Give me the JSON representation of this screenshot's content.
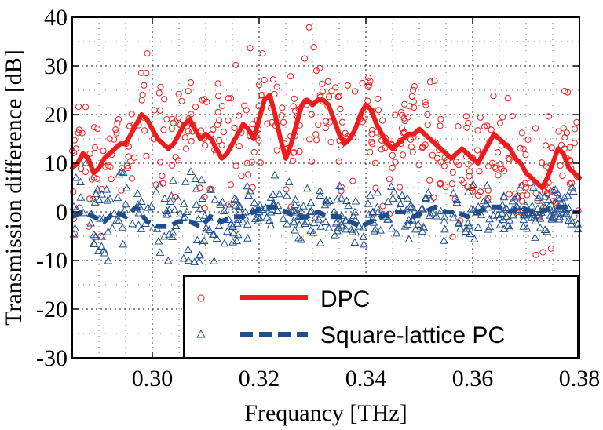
{
  "chart_data": {
    "type": "scatter",
    "xlabel": "Frequancy [THz]",
    "ylabel": "Transmission difference [dB]",
    "xlim": [
      0.285,
      0.38
    ],
    "ylim": [
      -30,
      40
    ],
    "xticks": [
      0.3,
      0.32,
      0.34,
      0.36,
      0.38
    ],
    "xtick_labels": [
      "0.30",
      "0.32",
      "0.34",
      "0.36",
      "0.38"
    ],
    "yticks": [
      -30,
      -20,
      -10,
      0,
      10,
      20,
      30,
      40
    ],
    "ytick_labels": [
      "-30",
      "-20",
      "-10",
      "0",
      "10",
      "20",
      "30",
      "40"
    ],
    "grid": true,
    "grid_style": "dotted",
    "legend_placement": "bottom-right",
    "series": [
      {
        "name": "DPC",
        "kind": "line",
        "color": "#ee1c1c",
        "style": "solid",
        "x": [
          0.285,
          0.286,
          0.287,
          0.288,
          0.289,
          0.29,
          0.291,
          0.292,
          0.293,
          0.294,
          0.295,
          0.296,
          0.297,
          0.298,
          0.299,
          0.3,
          0.301,
          0.302,
          0.303,
          0.304,
          0.305,
          0.306,
          0.307,
          0.308,
          0.309,
          0.31,
          0.311,
          0.312,
          0.313,
          0.314,
          0.315,
          0.316,
          0.317,
          0.318,
          0.319,
          0.32,
          0.321,
          0.322,
          0.323,
          0.324,
          0.325,
          0.326,
          0.327,
          0.328,
          0.329,
          0.33,
          0.331,
          0.332,
          0.333,
          0.334,
          0.335,
          0.336,
          0.337,
          0.338,
          0.339,
          0.34,
          0.341,
          0.342,
          0.343,
          0.344,
          0.345,
          0.346,
          0.347,
          0.348,
          0.349,
          0.35,
          0.351,
          0.352,
          0.353,
          0.354,
          0.355,
          0.356,
          0.357,
          0.358,
          0.359,
          0.36,
          0.361,
          0.362,
          0.363,
          0.364,
          0.365,
          0.366,
          0.367,
          0.368,
          0.369,
          0.37,
          0.371,
          0.372,
          0.373,
          0.374,
          0.375,
          0.376,
          0.377,
          0.378,
          0.379,
          0.38
        ],
        "y": [
          9,
          10,
          12,
          11,
          8,
          9,
          11,
          12,
          13,
          14,
          14,
          16,
          18,
          20,
          19,
          17,
          15,
          14,
          13,
          14,
          16,
          18,
          19,
          17,
          15,
          16,
          15,
          13,
          11,
          12,
          14,
          16,
          18,
          17,
          15,
          19,
          23,
          24,
          20,
          15,
          11,
          14,
          18,
          22,
          23,
          22,
          23,
          23,
          22,
          19,
          16,
          14,
          15,
          17,
          20,
          22,
          21,
          18,
          16,
          14,
          13,
          14,
          15,
          16,
          16,
          17,
          16,
          15,
          14,
          13,
          12,
          11,
          12,
          13,
          12,
          11,
          10,
          12,
          14,
          16,
          15,
          14,
          13,
          11,
          10,
          8,
          7,
          6,
          5,
          7,
          10,
          13,
          12,
          9,
          8,
          7
        ]
      },
      {
        "name": "Square-lattice PC",
        "kind": "line",
        "color": "#1f4e8c",
        "style": "dashed",
        "x": [
          0.285,
          0.287,
          0.289,
          0.291,
          0.293,
          0.295,
          0.297,
          0.299,
          0.301,
          0.303,
          0.305,
          0.307,
          0.309,
          0.311,
          0.313,
          0.315,
          0.317,
          0.319,
          0.321,
          0.323,
          0.325,
          0.327,
          0.329,
          0.331,
          0.333,
          0.335,
          0.337,
          0.339,
          0.341,
          0.343,
          0.345,
          0.347,
          0.349,
          0.351,
          0.353,
          0.355,
          0.357,
          0.359,
          0.361,
          0.363,
          0.365,
          0.367,
          0.369,
          0.371,
          0.373,
          0.375,
          0.377,
          0.379,
          0.38
        ],
        "y": [
          -1,
          0,
          -1,
          -2,
          0,
          -1,
          1,
          -2,
          -3,
          -3,
          -2,
          -2,
          -3,
          -1,
          -2,
          -1,
          -1,
          0,
          1,
          1,
          0,
          -1,
          -1,
          0,
          -1,
          -1,
          -2,
          -3,
          -2,
          -1,
          0,
          0,
          -1,
          0,
          1,
          0,
          0,
          -1,
          0,
          1,
          1,
          0,
          1,
          0,
          0,
          1,
          1,
          0,
          0
        ]
      }
    ]
  },
  "legend": {
    "entries": [
      "DPC",
      "Square-lattice PC"
    ]
  }
}
